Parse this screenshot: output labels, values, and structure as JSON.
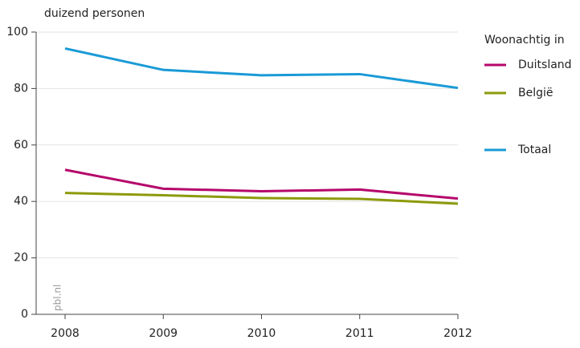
{
  "chart_data": {
    "type": "line",
    "y_label": "duizend personen",
    "watermark": "pbl.nl",
    "legend_title": "Woonachtig in",
    "legend": "right",
    "grid": true,
    "x": [
      2008,
      2009,
      2010,
      2011,
      2012
    ],
    "xlim": [
      2008,
      2012
    ],
    "xticks": [
      2008,
      2009,
      2010,
      2011,
      2012
    ],
    "ylim": [
      0,
      100
    ],
    "yticks": [
      0,
      20,
      40,
      60,
      80,
      100
    ],
    "series": [
      {
        "name": "Duitsland",
        "color": "#b5076b",
        "values": [
          51.2,
          44.5,
          43.6,
          44.2,
          41.0
        ]
      },
      {
        "name": "België",
        "color": "#8c9a0a",
        "values": [
          43.0,
          42.2,
          41.2,
          40.9,
          39.2
        ]
      },
      {
        "name": "Totaal",
        "color": "#1a9ad6",
        "values": [
          94.2,
          86.6,
          84.7,
          85.1,
          80.2
        ]
      }
    ]
  }
}
